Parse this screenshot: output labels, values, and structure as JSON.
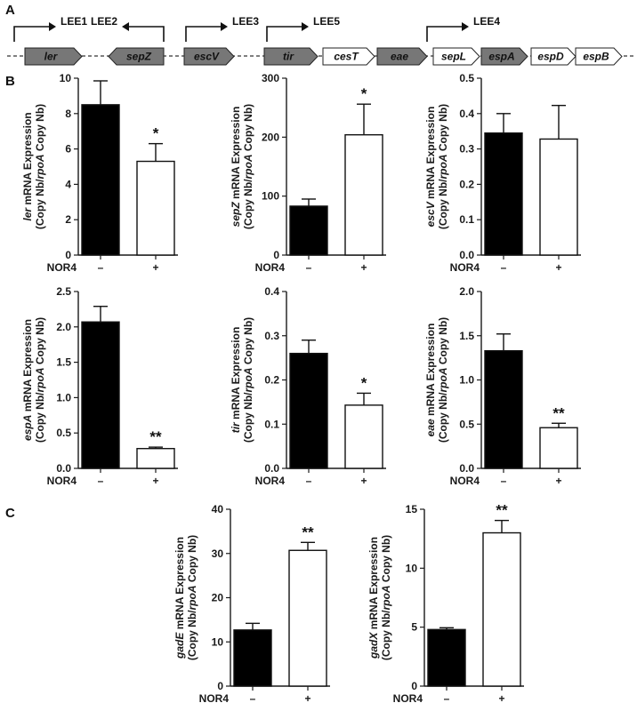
{
  "panel_letters": {
    "a": "A",
    "b": "B",
    "c": "C"
  },
  "gene_map": {
    "promoters": [
      {
        "label": "LEE1",
        "dir": "right"
      },
      {
        "label": "LEE2",
        "dir": "left"
      },
      {
        "label": "LEE3",
        "dir": "right"
      },
      {
        "label": "LEE5",
        "dir": "right"
      },
      {
        "label": "LEE4",
        "dir": "right"
      }
    ],
    "genes": [
      {
        "label": "ler",
        "filled": true,
        "dir": "right"
      },
      {
        "label": "sepZ",
        "filled": true,
        "dir": "left"
      },
      {
        "label": "escV",
        "filled": true,
        "dir": "right"
      },
      {
        "label": "tir",
        "filled": true,
        "dir": "right"
      },
      {
        "label": "cesT",
        "filled": false,
        "dir": "right"
      },
      {
        "label": "eae",
        "filled": true,
        "dir": "right"
      },
      {
        "label": "sepL",
        "filled": false,
        "dir": "right"
      },
      {
        "label": "espA",
        "filled": true,
        "dir": "right"
      },
      {
        "label": "espD",
        "filled": false,
        "dir": "right"
      },
      {
        "label": "espB",
        "filled": false,
        "dir": "right"
      }
    ]
  },
  "colors": {
    "control_bar": "#000000",
    "treated_bar": "#ffffff",
    "axis": "#1a1a1a",
    "gene_fill": "#777777"
  },
  "chart_data": [
    {
      "type": "bar",
      "gene": "ler",
      "ylabel_line2": "(Copy Nb/rpoA Copy Nb)",
      "treatment_label": "NOR4",
      "categories": [
        "–",
        "+"
      ],
      "values": [
        8.5,
        5.3
      ],
      "errors": [
        1.35,
        1.0
      ],
      "significance": [
        "",
        "*"
      ],
      "ylim": [
        0,
        10
      ],
      "yticks": [
        0,
        2,
        4,
        6,
        8,
        10
      ]
    },
    {
      "type": "bar",
      "gene": "sepZ",
      "ylabel_line2": "(Copy Nb/rpoA Copy Nb)",
      "treatment_label": "NOR4",
      "categories": [
        "–",
        "+"
      ],
      "values": [
        83,
        204
      ],
      "errors": [
        12,
        52
      ],
      "significance": [
        "",
        "*"
      ],
      "ylim": [
        0,
        300
      ],
      "yticks": [
        0,
        100,
        200,
        300
      ]
    },
    {
      "type": "bar",
      "gene": "escV",
      "ylabel_line2": "(Copy Nb/rpoA Copy Nb)",
      "treatment_label": "NOR4",
      "categories": [
        "–",
        "+"
      ],
      "values": [
        0.345,
        0.328
      ],
      "errors": [
        0.055,
        0.095
      ],
      "significance": [
        "",
        ""
      ],
      "ylim": [
        0,
        0.5
      ],
      "yticks": [
        0,
        0.1,
        0.2,
        0.3,
        0.4,
        0.5
      ]
    },
    {
      "type": "bar",
      "gene": "espA",
      "ylabel_line2": "(Copy Nb/rpoA Copy Nb)",
      "treatment_label": "NOR4",
      "categories": [
        "–",
        "+"
      ],
      "values": [
        2.07,
        0.28
      ],
      "errors": [
        0.22,
        0.02
      ],
      "significance": [
        "",
        "**"
      ],
      "ylim": [
        0,
        2.5
      ],
      "yticks": [
        0,
        0.5,
        1.0,
        1.5,
        2.0,
        2.5
      ]
    },
    {
      "type": "bar",
      "gene": "tir",
      "ylabel_line2": "(Copy Nb/rpoA Copy Nb)",
      "treatment_label": "NOR4",
      "categories": [
        "–",
        "+"
      ],
      "values": [
        0.26,
        0.143
      ],
      "errors": [
        0.03,
        0.027
      ],
      "significance": [
        "",
        "*"
      ],
      "ylim": [
        0,
        0.4
      ],
      "yticks": [
        0,
        0.1,
        0.2,
        0.3,
        0.4
      ]
    },
    {
      "type": "bar",
      "gene": "eae",
      "ylabel_line2": "(Copy Nb/rpoA Copy Nb)",
      "treatment_label": "NOR4",
      "categories": [
        "–",
        "+"
      ],
      "values": [
        1.33,
        0.46
      ],
      "errors": [
        0.19,
        0.05
      ],
      "significance": [
        "",
        "**"
      ],
      "ylim": [
        0,
        2.0
      ],
      "yticks": [
        0,
        0.5,
        1.0,
        1.5,
        2.0
      ]
    },
    {
      "type": "bar",
      "gene": "gadE",
      "ylabel_line2": "(Copy Nb/rpoA Copy Nb)",
      "treatment_label": "NOR4",
      "categories": [
        "–",
        "+"
      ],
      "values": [
        12.7,
        30.7
      ],
      "errors": [
        1.5,
        1.8
      ],
      "significance": [
        "",
        "**"
      ],
      "ylim": [
        0,
        40
      ],
      "yticks": [
        0,
        10,
        20,
        30,
        40
      ]
    },
    {
      "type": "bar",
      "gene": "gadX",
      "ylabel_line2": "(Copy Nb/rpoA Copy Nb)",
      "treatment_label": "NOR4",
      "categories": [
        "–",
        "+"
      ],
      "values": [
        4.8,
        13.0
      ],
      "errors": [
        0.15,
        1.05
      ],
      "significance": [
        "",
        "**"
      ],
      "ylim": [
        0,
        15
      ],
      "yticks": [
        0,
        5,
        10,
        15
      ]
    }
  ],
  "ylabel_suffix": " mRNA Expression",
  "ylabel_rpo": "rpoA"
}
